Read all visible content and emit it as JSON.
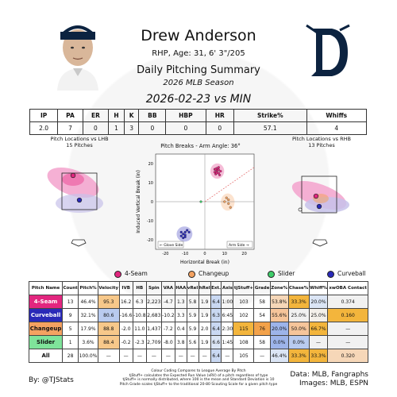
{
  "header": {
    "name": "Drew Anderson",
    "info": "RHP, Age: 31, 6' 3\"/205",
    "title": "Daily Pitching Summary",
    "season": "2026 MLB Season",
    "game": "2026-02-23 vs MIN"
  },
  "summary": {
    "headers": [
      "IP",
      "PA",
      "ER",
      "H",
      "K",
      "BB",
      "HBP",
      "HR",
      "Strike%",
      "Whiffs"
    ],
    "values": [
      "2.0",
      "7",
      "0",
      "1",
      "3",
      "0",
      "0",
      "0",
      "57.1",
      "4"
    ]
  },
  "lhb": {
    "title": "Pitch Locations vs LHB",
    "count": "15 Pitches"
  },
  "rhb": {
    "title": "Pitch Locations vs RHB",
    "count": "13 Pitches"
  },
  "breaks": {
    "title": "Pitch Breaks - Arm Angle: 36°",
    "xlabel": "Horizontal Break (in)",
    "ylabel": "Induced Vertical Break (in)",
    "glove": "← Glove Side",
    "arm": "Arm Side →",
    "xticks": [
      "-20",
      "-10",
      "0",
      "10",
      "20"
    ],
    "yticks": [
      "20",
      "10",
      "0",
      "-10",
      "-20"
    ]
  },
  "legend": [
    {
      "name": "4-Seam",
      "color": "#e2267f"
    },
    {
      "name": "Changeup",
      "color": "#f4a261"
    },
    {
      "name": "Slider",
      "color": "#3fcc6a"
    },
    {
      "name": "Curveball",
      "color": "#2a2ab8"
    }
  ],
  "stats": {
    "headers": [
      "Pitch Name",
      "Count",
      "Pitch%",
      "Velocity",
      "IVB",
      "HB",
      "Spin",
      "VAA",
      "HAA",
      "vRel",
      "hRel",
      "Ext.",
      "Axis",
      "tjStuff+",
      "Grade",
      "Zone%",
      "Chase%",
      "Whiff%",
      "xwOBA Contact"
    ],
    "rows": [
      {
        "name": "4-Seam",
        "bg": "#e2267f",
        "fg": "#ffffff",
        "cells": [
          "13",
          "46.4%",
          "95.3",
          "16.2",
          "6.3",
          "2,223",
          "-4.7",
          "1.3",
          "5.8",
          "1.9",
          "6.4",
          "1:00",
          "103",
          "58",
          "53.8%",
          "33.3%",
          "20.0%",
          "0.374"
        ],
        "colors": [
          "",
          "",
          "#f7c88a",
          "",
          "",
          "",
          "",
          "",
          "",
          "",
          "#c9d8f2",
          "",
          "",
          "",
          "#f6d7b8",
          "#f3b53c",
          "#dbe5f5",
          "#f1f1f1"
        ]
      },
      {
        "name": "Curveball",
        "bg": "#2a2ab8",
        "fg": "#ffffff",
        "cells": [
          "9",
          "32.1%",
          "80.6",
          "-16.6",
          "-10.8",
          "2,683",
          "-10.2",
          "3.3",
          "5.9",
          "1.9",
          "6.3",
          "6:45",
          "102",
          "54",
          "55.6%",
          "25.0%",
          "25.0%",
          "0.160"
        ],
        "colors": [
          "",
          "",
          "#b9cbef",
          "",
          "",
          "",
          "",
          "",
          "",
          "",
          "#c9d8f2",
          "",
          "",
          "",
          "#f6c59a",
          "#f1f1f1",
          "#f4f0ea",
          "#f3b53c"
        ]
      },
      {
        "name": "Changeup",
        "bg": "#f4a261",
        "fg": "#111111",
        "cells": [
          "5",
          "17.9%",
          "88.8",
          "-2.0",
          "11.0",
          "1,437",
          "-7.2",
          "0.4",
          "5.9",
          "2.0",
          "6.4",
          "2:30",
          "115",
          "76",
          "20.0%",
          "50.0%",
          "66.7%",
          "—"
        ],
        "colors": [
          "",
          "",
          "#f7c88a",
          "",
          "",
          "",
          "",
          "",
          "",
          "",
          "#c9d8f2",
          "",
          "#f3b53c",
          "#f3a24a",
          "#9db4ea",
          "#f6c59a",
          "#f3b53c",
          "#f1f1f1"
        ]
      },
      {
        "name": "Slider",
        "bg": "#7fe39a",
        "fg": "#111111",
        "cells": [
          "1",
          "3.6%",
          "88.4",
          "-0.2",
          "-2.3",
          "2,709",
          "-8.0",
          "3.8",
          "5.6",
          "1.9",
          "6.6",
          "1:45",
          "108",
          "58",
          "0.0%",
          "0.0%",
          "—",
          "—"
        ],
        "colors": [
          "",
          "",
          "#f7c88a",
          "",
          "",
          "",
          "",
          "",
          "",
          "",
          "#dbe5f5",
          "",
          "",
          "",
          "#9db4ea",
          "#b9cbef",
          "#f1f1f1",
          "#f1f1f1"
        ]
      },
      {
        "name": "All",
        "bg": "#ffffff",
        "fg": "#111111",
        "cells": [
          "28",
          "100.0%",
          "—",
          "—",
          "—",
          "—",
          "—",
          "—",
          "—",
          "—",
          "6.4",
          "—",
          "105",
          "—",
          "46.4%",
          "33.3%",
          "33.3%",
          "0.320"
        ],
        "colors": [
          "",
          "",
          "",
          "",
          "",
          "",
          "",
          "",
          "",
          "",
          "#c9d8f2",
          "",
          "",
          "",
          "#dbe5f5",
          "#f3b53c",
          "#f3b53c",
          "#f6d7b8"
        ]
      }
    ]
  },
  "footer": {
    "left": "By: @TJStats",
    "mid": [
      "Colour Coding Compares to League Average By Pitch",
      "tjStuff+ calculates the Expected Run Value (xRV) of a pitch regardless of type",
      "tjStuff+ is normally distributed, where 100 is the mean and Standard Deviation is 10",
      "Pitch Grade scales tjStuff+ to the traditional 20-80 Scouting Scale for a given pitch type"
    ],
    "right1": "Data: MLB, Fangraphs",
    "right2": "Images: MLB, ESPN"
  },
  "chart_data": {
    "type": "scatter",
    "title": "Pitch Breaks - Arm Angle: 36°",
    "xlabel": "Horizontal Break (in)",
    "ylabel": "Induced Vertical Break (in)",
    "xlim": [
      -25,
      25
    ],
    "ylim": [
      -25,
      25
    ],
    "series": [
      {
        "name": "4-Seam",
        "color": "#e2267f",
        "points": [
          [
            5,
            17
          ],
          [
            6,
            16
          ],
          [
            7,
            15
          ],
          [
            5.5,
            14.5
          ],
          [
            7,
            18
          ],
          [
            6.5,
            16.5
          ],
          [
            5,
            15.5
          ],
          [
            8,
            16
          ],
          [
            6,
            17.5
          ],
          [
            7.5,
            14
          ],
          [
            6,
            15
          ],
          [
            5.5,
            17
          ],
          [
            7,
            16.8
          ]
        ]
      },
      {
        "name": "Changeup",
        "color": "#f4a261",
        "points": [
          [
            11,
            2
          ],
          [
            12,
            -1
          ],
          [
            10,
            0
          ],
          [
            13,
            -3
          ],
          [
            12,
            1
          ]
        ]
      },
      {
        "name": "Curveball",
        "color": "#2a2ab8",
        "points": [
          [
            -11,
            -17
          ],
          [
            -10,
            -16
          ],
          [
            -12,
            -18
          ],
          [
            -9,
            -15
          ],
          [
            -11,
            -19
          ],
          [
            -10,
            -17.5
          ],
          [
            -8,
            -16
          ],
          [
            -12,
            -16
          ],
          [
            -10,
            -18.5
          ]
        ]
      },
      {
        "name": "Slider",
        "color": "#3fcc6a",
        "points": [
          [
            -2,
            0
          ]
        ]
      }
    ]
  }
}
